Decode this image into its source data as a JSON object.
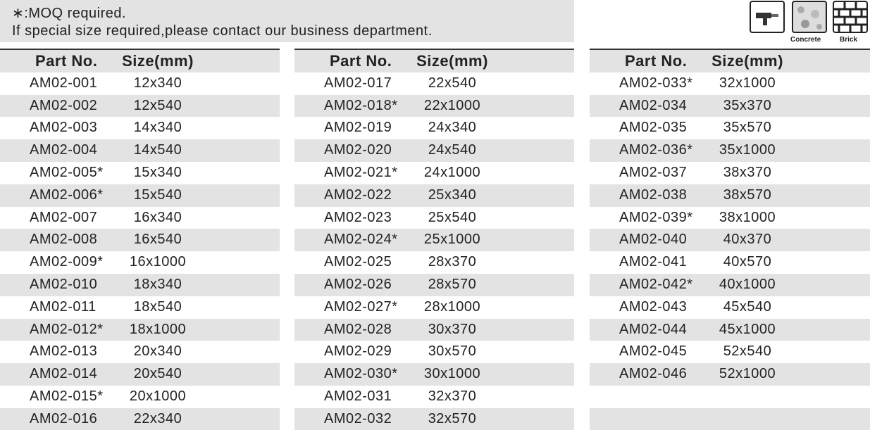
{
  "note": {
    "lines": [
      "∗:MOQ required.",
      "If special size required,please contact our business department."
    ]
  },
  "icons": {
    "labels": [
      "Concrete",
      "Brick"
    ]
  },
  "tables": [
    {
      "header": [
        "Part No.",
        "Size(mm)"
      ],
      "rows": [
        [
          "AM02-001",
          "12x340"
        ],
        [
          "AM02-002",
          "12x540"
        ],
        [
          "AM02-003",
          "14x340"
        ],
        [
          "AM02-004",
          "14x540"
        ],
        [
          "AM02-005*",
          "15x340"
        ],
        [
          "AM02-006*",
          "15x540"
        ],
        [
          "AM02-007",
          "16x340"
        ],
        [
          "AM02-008",
          "16x540"
        ],
        [
          "AM02-009*",
          "16x1000"
        ],
        [
          "AM02-010",
          "18x340"
        ],
        [
          "AM02-011",
          "18x540"
        ],
        [
          "AM02-012*",
          "18x1000"
        ],
        [
          "AM02-013",
          "20x340"
        ],
        [
          "AM02-014",
          "20x540"
        ],
        [
          "AM02-015*",
          "20x1000"
        ],
        [
          "AM02-016",
          "22x340"
        ]
      ]
    },
    {
      "header": [
        "Part No.",
        "Size(mm)"
      ],
      "rows": [
        [
          "AM02-017",
          "22x540"
        ],
        [
          "AM02-018*",
          "22x1000"
        ],
        [
          "AM02-019",
          "24x340"
        ],
        [
          "AM02-020",
          "24x540"
        ],
        [
          "AM02-021*",
          "24x1000"
        ],
        [
          "AM02-022",
          "25x340"
        ],
        [
          "AM02-023",
          "25x540"
        ],
        [
          "AM02-024*",
          "25x1000"
        ],
        [
          "AM02-025",
          "28x370"
        ],
        [
          "AM02-026",
          "28x570"
        ],
        [
          "AM02-027*",
          "28x1000"
        ],
        [
          "AM02-028",
          "30x370"
        ],
        [
          "AM02-029",
          "30x570"
        ],
        [
          "AM02-030*",
          "30x1000"
        ],
        [
          "AM02-031",
          "32x370"
        ],
        [
          "AM02-032",
          "32x570"
        ]
      ]
    },
    {
      "header": [
        "Part No.",
        "Size(mm)"
      ],
      "rows": [
        [
          "AM02-033*",
          "32x1000"
        ],
        [
          "AM02-034",
          "35x370"
        ],
        [
          "AM02-035",
          "35x570"
        ],
        [
          "AM02-036*",
          "35x1000"
        ],
        [
          "AM02-037",
          "38x370"
        ],
        [
          "AM02-038",
          "38x570"
        ],
        [
          "AM02-039*",
          "38x1000"
        ],
        [
          "AM02-040",
          "40x370"
        ],
        [
          "AM02-041",
          "40x570"
        ],
        [
          "AM02-042*",
          "40x1000"
        ],
        [
          "AM02-043",
          "45x540"
        ],
        [
          "AM02-044",
          "45x1000"
        ],
        [
          "AM02-045",
          "52x540"
        ],
        [
          "AM02-046",
          "52x1000"
        ]
      ]
    }
  ]
}
